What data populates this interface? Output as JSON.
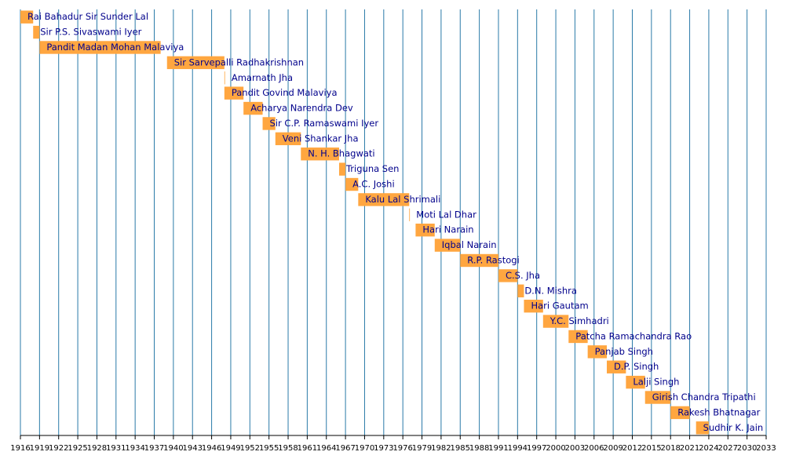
{
  "chart_data": {
    "type": "gantt",
    "tasks": [
      {
        "name": "Rai Bahadur Sir Sunder Lal",
        "start": 1916,
        "end": 1918
      },
      {
        "name": "Sir P.S. Sivaswami Iyer",
        "start": 1918,
        "end": 1919
      },
      {
        "name": "Pandit Madan Mohan Malaviya",
        "start": 1919,
        "end": 1938
      },
      {
        "name": "Sir Sarvepalli Radhakrishnan",
        "start": 1939,
        "end": 1948
      },
      {
        "name": "Amarnath Jha",
        "start": 1948,
        "end": 1948.1
      },
      {
        "name": "Pandit Govind Malaviya",
        "start": 1948,
        "end": 1951
      },
      {
        "name": "Acharya Narendra Dev",
        "start": 1951,
        "end": 1954
      },
      {
        "name": "Sir C.P. Ramaswami Iyer",
        "start": 1954,
        "end": 1956
      },
      {
        "name": "Veni Shankar Jha",
        "start": 1956,
        "end": 1960
      },
      {
        "name": "N. H. Bhagwati",
        "start": 1960,
        "end": 1966
      },
      {
        "name": "Triguna Sen",
        "start": 1966,
        "end": 1967
      },
      {
        "name": "A.C. Joshi",
        "start": 1967,
        "end": 1969
      },
      {
        "name": "Kalu Lal Shrimali",
        "start": 1969,
        "end": 1977
      },
      {
        "name": "Moti Lal Dhar",
        "start": 1977,
        "end": 1977.1
      },
      {
        "name": "Hari Narain",
        "start": 1978,
        "end": 1981
      },
      {
        "name": "Iqbal Narain",
        "start": 1981,
        "end": 1985
      },
      {
        "name": "R.P. Rastogi",
        "start": 1985,
        "end": 1991
      },
      {
        "name": "C.S. Jha",
        "start": 1991,
        "end": 1994
      },
      {
        "name": "D.N. Mishra",
        "start": 1994,
        "end": 1995
      },
      {
        "name": "Hari Gautam",
        "start": 1995,
        "end": 1998
      },
      {
        "name": "Y.C. Simhadri",
        "start": 1998,
        "end": 2002
      },
      {
        "name": "Patcha Ramachandra Rao",
        "start": 2002,
        "end": 2005
      },
      {
        "name": "Panjab Singh",
        "start": 2005,
        "end": 2008
      },
      {
        "name": "D.P. Singh",
        "start": 2008,
        "end": 2011
      },
      {
        "name": "Lalji Singh",
        "start": 2011,
        "end": 2014
      },
      {
        "name": "Girish Chandra Tripathi",
        "start": 2014,
        "end": 2018
      },
      {
        "name": "Rakesh Bhatnagar",
        "start": 2018,
        "end": 2021
      },
      {
        "name": "Sudhir K. Jain",
        "start": 2022,
        "end": 2024
      }
    ],
    "color": "#ffa640",
    "label_color": "#00008b",
    "grid_color": "#2a7aa8",
    "grid": true,
    "xlim": [
      1916,
      2033
    ],
    "xticks": [
      1916,
      1919,
      1922,
      1925,
      1928,
      1931,
      1934,
      1937,
      1940,
      1943,
      1946,
      1949,
      1952,
      1955,
      1958,
      1961,
      1964,
      1967,
      1970,
      1973,
      1976,
      1979,
      1982,
      1985,
      1988,
      1991,
      1994,
      1997,
      2000,
      2003,
      2006,
      2009,
      2012,
      2015,
      2018,
      2021,
      2024,
      2027,
      2030,
      2033
    ]
  }
}
